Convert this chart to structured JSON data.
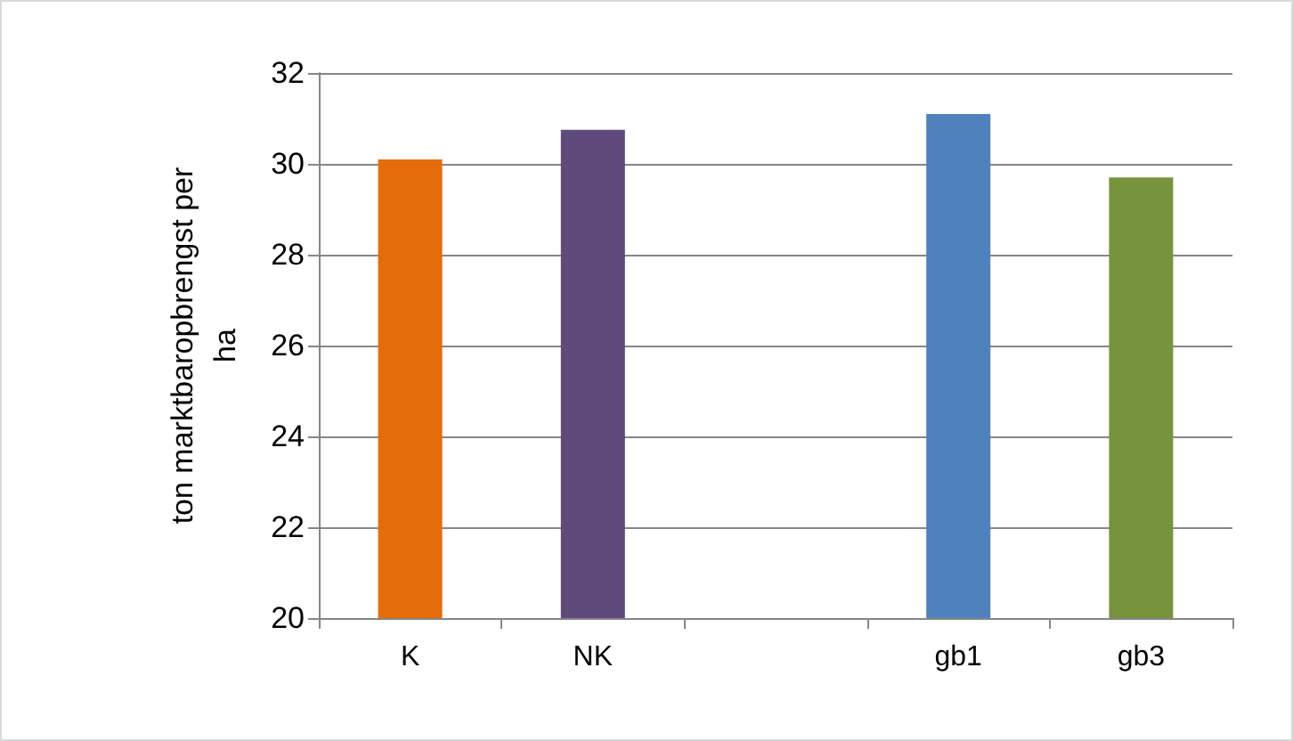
{
  "chart_data": {
    "type": "bar",
    "ylabel": "ton marktbaropbrengst per ha",
    "categories": [
      "K",
      "NK",
      null,
      "gb1",
      "gb3"
    ],
    "values": [
      30.1,
      30.75,
      null,
      31.1,
      29.7
    ],
    "colors": [
      "#e46c0a",
      "#604a7b",
      "#4f81bd",
      "#4f81bd",
      "#77933c"
    ],
    "ylim": [
      20,
      32
    ],
    "yticks": [
      20,
      22,
      24,
      26,
      28,
      30,
      32
    ],
    "grid": "y"
  }
}
